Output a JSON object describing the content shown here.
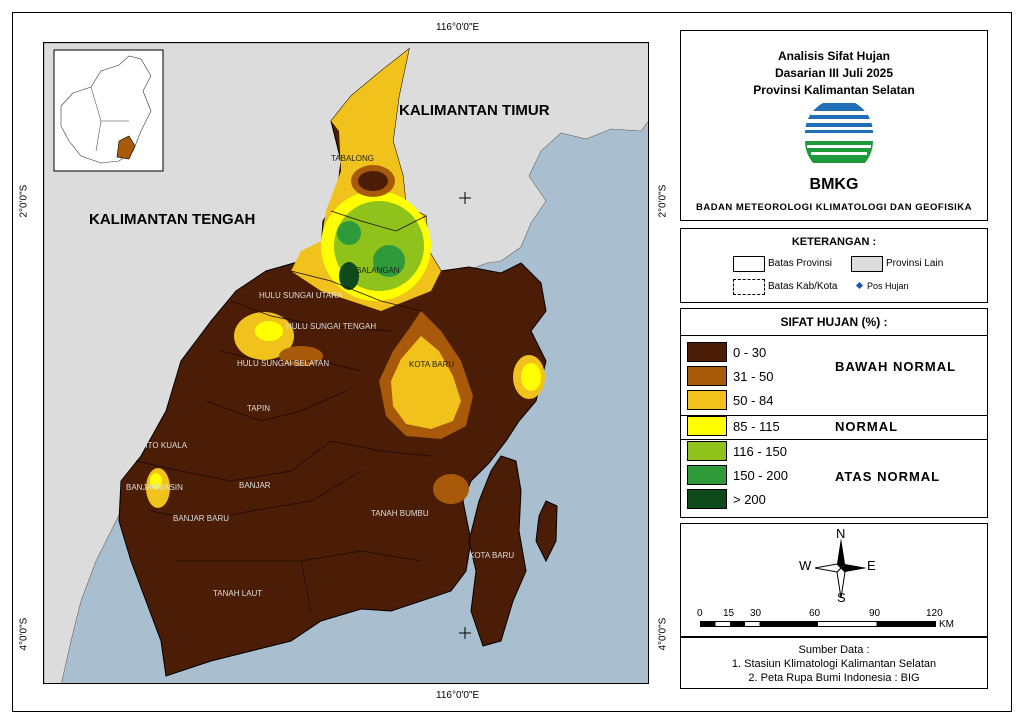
{
  "title": {
    "line1": "Analisis Sifat Hujan",
    "line2": "Dasarian III Juli 2025",
    "line3": "Provinsi Kalimantan Selatan",
    "logo_text": "BMKG",
    "agency": "BADAN METEOROLOGI KLIMATOLOGI DAN GEOFISIKA"
  },
  "coords": {
    "top": "116°0'0\"E",
    "bottom": "116°0'0\"E",
    "left_upper": "2°0'0\"S",
    "left_lower": "4°0'0\"S",
    "right_upper": "2°0'0\"S",
    "right_lower": "4°0'0\"S"
  },
  "map_labels": {
    "kaltim": "KALIMANTAN TIMUR",
    "kalteng": "KALIMANTAN TENGAH",
    "tabalong": "TABALONG",
    "balangan": "BALANGAN",
    "hsu": "HULU SUNGAI UTARA",
    "hst": "HULU SUNGAI TENGAH",
    "hss": "HULU SUNGAI SELATAN",
    "kotabaru": "KOTA BARU",
    "kotabaru2": "KOTA BARU",
    "tapin": "TAPIN",
    "baritokuala": "BARITO KUALA",
    "banjarmasin": "BANJARMASIN",
    "banjar": "BANJAR",
    "banjarbaru": "BANJAR BARU",
    "tanahbumbu": "TANAH BUMBU",
    "tanahlaut": "TANAH LAUT"
  },
  "keterangan": {
    "title": "KETERANGAN :",
    "batas_provinsi": "Batas Provinsi",
    "provinsi_lain": "Provinsi Lain",
    "batas_kab": "Batas Kab/Kota",
    "pos_hujan": "Pos Hujan"
  },
  "sifat": {
    "title": "SIFAT HUJAN (%) :",
    "classes": [
      {
        "range": "0 - 30",
        "color": "#4b1d07"
      },
      {
        "range": "31 - 50",
        "color": "#a85a0a"
      },
      {
        "range": "50 - 84",
        "color": "#f0c21b"
      },
      {
        "range": "85 - 115",
        "color": "#ffff00"
      },
      {
        "range": "116 - 150",
        "color": "#8fc21a"
      },
      {
        "range": "150 - 200",
        "color": "#2f9a3a"
      },
      {
        "range": "> 200",
        "color": "#0f4a1a"
      }
    ],
    "categories": {
      "bawah": "BAWAH NORMAL",
      "normal": "NORMAL",
      "atas": "ATAS NORMAL"
    }
  },
  "compass": {
    "n": "N",
    "s": "S",
    "e": "E",
    "w": "W"
  },
  "scale": {
    "ticks": [
      "0",
      "15",
      "30",
      "60",
      "90",
      "120"
    ],
    "unit": "KM"
  },
  "sumber": {
    "title": "Sumber Data :",
    "line1": "1. Stasiun Klimatologi Kalimantan Selatan",
    "line2": "2. Peta Rupa Bumi Indonesia : BIG"
  },
  "colors": {
    "sea": "#a9bfcf",
    "other_province": "#dcdcdc",
    "boundary": "#000000"
  }
}
